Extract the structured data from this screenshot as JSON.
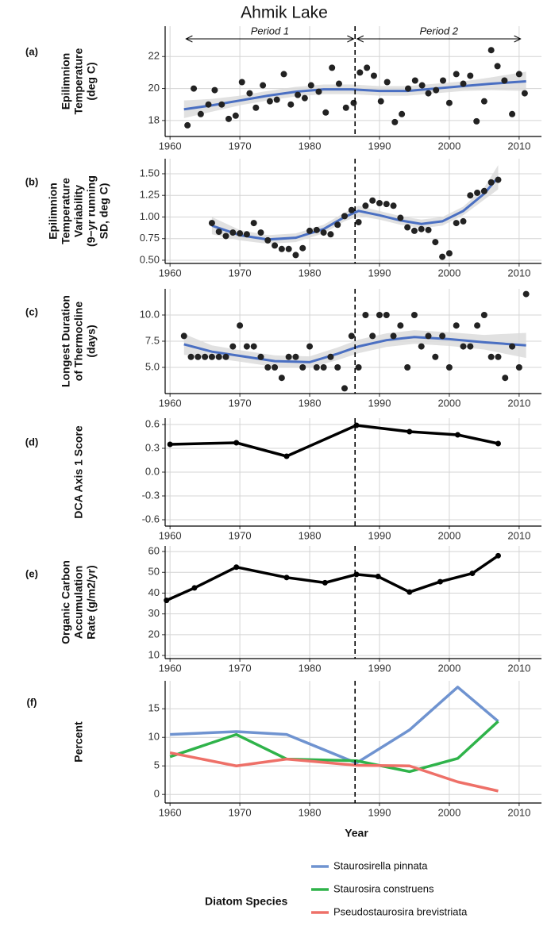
{
  "chart_data": [
    {
      "type": "scatter",
      "title": "Ahmik Lake",
      "panel_label": "(a)",
      "ylabel": [
        "Epilimnion",
        "Temperature",
        "(deg C)"
      ],
      "periods": [
        {
          "label": "Period 1",
          "start": 1962.3,
          "end": 1986.3
        },
        {
          "label": "Period 2",
          "start": 1986.8,
          "end": 2010.2
        }
      ],
      "xlim": [
        1959.3,
        2013.2
      ],
      "xticks": [
        1960,
        1970,
        1980,
        1990,
        2000,
        2010
      ],
      "ylim": [
        17.0,
        23.9
      ],
      "yticks": [
        18,
        20,
        22
      ],
      "grid": true,
      "vline": 1986.5,
      "point_color": "#222222",
      "smooth_color": "#4a6fc2",
      "band_color": "#d9d9d9",
      "points": {
        "x": [
          1962.5,
          1963.4,
          1964.4,
          1965.5,
          1966.4,
          1967.4,
          1968.4,
          1969.4,
          1970.3,
          1971.4,
          1972.3,
          1973.3,
          1974.3,
          1975.3,
          1976.3,
          1977.3,
          1978.3,
          1979.3,
          1980.2,
          1981.3,
          1982.3,
          1983.2,
          1984.2,
          1985.2,
          1986.3,
          1987.2,
          1988.2,
          1989.2,
          1990.2,
          1991.1,
          1992.2,
          1993.2,
          1994.1,
          1995.1,
          1996.1,
          1997.0,
          1998.1,
          1999.1,
          2000.0,
          2001.0,
          2002.0,
          2003.0,
          2003.9,
          2005.0,
          2006.0,
          2006.9,
          2007.9,
          2009.0,
          2010.0,
          2010.8
        ],
        "y": [
          17.7,
          20.0,
          18.4,
          19.0,
          19.9,
          19.0,
          18.1,
          18.3,
          20.4,
          19.7,
          18.8,
          20.2,
          19.2,
          19.3,
          20.9,
          19.0,
          19.6,
          19.4,
          20.2,
          19.8,
          18.5,
          21.3,
          20.3,
          18.8,
          19.1,
          21.0,
          21.3,
          20.8,
          19.2,
          20.4,
          17.9,
          18.4,
          20.0,
          20.5,
          20.2,
          19.7,
          19.9,
          20.5,
          19.1,
          20.9,
          20.3,
          20.8,
          17.95,
          19.2,
          22.4,
          21.4,
          20.5,
          18.4,
          20.9,
          19.7
        ]
      },
      "smooth": {
        "x": [
          1962,
          1966,
          1970,
          1974,
          1978,
          1982,
          1986,
          1990,
          1994,
          1998,
          2002,
          2006,
          2011
        ],
        "y": [
          18.7,
          18.95,
          19.25,
          19.55,
          19.8,
          19.95,
          19.95,
          19.85,
          19.85,
          20.0,
          20.15,
          20.3,
          20.45
        ],
        "lower": [
          18.15,
          18.55,
          18.95,
          19.25,
          19.5,
          19.65,
          19.65,
          19.55,
          19.55,
          19.7,
          19.85,
          19.9,
          19.85
        ],
        "upper": [
          19.25,
          19.35,
          19.55,
          19.85,
          20.1,
          20.25,
          20.25,
          20.15,
          20.15,
          20.3,
          20.45,
          20.7,
          21.05
        ]
      }
    },
    {
      "type": "scatter",
      "panel_label": "(b)",
      "ylabel": [
        "Epilimnion",
        "Temperature",
        "Variability",
        "(9−yr running",
        "SD, deg C)"
      ],
      "xlim": [
        1959.3,
        2013.2
      ],
      "xticks": [
        1960,
        1970,
        1980,
        1990,
        2000,
        2010
      ],
      "ylim": [
        0.463,
        1.674
      ],
      "yticks": [
        {
          "value": 0.5,
          "label": "0.50"
        },
        {
          "value": 0.75,
          "label": "0.75"
        },
        {
          "value": 1,
          "label": "1.00"
        },
        {
          "value": 1.25,
          "label": "1.25"
        },
        {
          "value": 1.5,
          "label": "1.50"
        }
      ],
      "grid": true,
      "vline": 1986.5,
      "point_color": "#222222",
      "smooth_color": "#4a6fc2",
      "band_color": "#d9d9d9",
      "points": {
        "x": [
          1966,
          1967,
          1968,
          1969,
          1970,
          1971,
          1972,
          1973,
          1974,
          1975,
          1976,
          1977,
          1978,
          1979,
          1980,
          1981,
          1982,
          1983,
          1984,
          1985,
          1986,
          1987,
          1988,
          1989,
          1990,
          1991,
          1992,
          1993,
          1994,
          1995,
          1996,
          1997,
          1998,
          1999,
          2000,
          2001,
          2002,
          2003,
          2004,
          2005,
          2006,
          2007
        ],
        "y": [
          0.93,
          0.83,
          0.78,
          0.82,
          0.81,
          0.8,
          0.93,
          0.82,
          0.73,
          0.67,
          0.63,
          0.63,
          0.56,
          0.64,
          0.84,
          0.85,
          0.82,
          0.8,
          0.91,
          1.01,
          1.08,
          0.94,
          1.13,
          1.19,
          1.16,
          1.15,
          1.13,
          0.99,
          0.88,
          0.84,
          0.86,
          0.85,
          0.71,
          0.54,
          0.58,
          0.93,
          0.95,
          1.25,
          1.28,
          1.3,
          1.4,
          1.43
        ]
      },
      "smooth": {
        "x": [
          1966,
          1970,
          1974,
          1978,
          1982,
          1985,
          1987,
          1990,
          1993,
          1996,
          1999,
          2002,
          2005,
          2007
        ],
        "y": [
          0.9,
          0.79,
          0.74,
          0.76,
          0.86,
          1.0,
          1.07,
          1.02,
          0.96,
          0.92,
          0.95,
          1.07,
          1.27,
          1.46
        ],
        "lower": [
          0.8,
          0.73,
          0.69,
          0.71,
          0.81,
          0.95,
          1.01,
          0.97,
          0.91,
          0.87,
          0.9,
          1.02,
          1.2,
          1.32
        ],
        "upper": [
          1.0,
          0.85,
          0.79,
          0.81,
          0.91,
          1.05,
          1.13,
          1.07,
          1.01,
          0.97,
          1.0,
          1.12,
          1.34,
          1.6
        ]
      }
    },
    {
      "type": "scatter",
      "panel_label": "(c)",
      "ylabel": [
        "Longest Duration",
        "of Thermocline",
        "(days)"
      ],
      "xlim": [
        1959.3,
        2013.2
      ],
      "xticks": [
        1960,
        1970,
        1980,
        1990,
        2000,
        2010
      ],
      "ylim": [
        2.5,
        12.5
      ],
      "yticks": [
        {
          "value": 5,
          "label": "5.0"
        },
        7.5,
        {
          "value": 10,
          "label": "10.0"
        }
      ],
      "grid": true,
      "vline": 1986.5,
      "point_color": "#222222",
      "smooth_color": "#4a6fc2",
      "band_color": "#d9d9d9",
      "points": {
        "x": [
          1962,
          1963,
          1964,
          1965,
          1966,
          1967,
          1968,
          1969,
          1970,
          1971,
          1972,
          1973,
          1974,
          1975,
          1976,
          1977,
          1978,
          1979,
          1980,
          1981,
          1982,
          1983,
          1984,
          1985,
          1986,
          1987,
          1988,
          1989,
          1990,
          1991,
          1992,
          1993,
          1994,
          1995,
          1996,
          1997,
          1998,
          1999,
          2000,
          2001,
          2002,
          2003,
          2004,
          2005,
          2006,
          2007,
          2008,
          2009,
          2010,
          2011
        ],
        "y": [
          8,
          6,
          6,
          6,
          6,
          6,
          6,
          7,
          9,
          7,
          7,
          6,
          5,
          5,
          4,
          6,
          6,
          5,
          7,
          5,
          5,
          6,
          5,
          3,
          8,
          5,
          10,
          8,
          10,
          10,
          8,
          9,
          5,
          10,
          7,
          8,
          6,
          8,
          5,
          9,
          7,
          7,
          9,
          10,
          6,
          6,
          4,
          7,
          5,
          12
        ]
      },
      "smooth": {
        "x": [
          1962,
          1966,
          1970,
          1975,
          1980,
          1984,
          1987,
          1991,
          1995,
          2000,
          2005,
          2011
        ],
        "y": [
          7.2,
          6.5,
          6.1,
          5.6,
          5.5,
          6.3,
          7.0,
          7.6,
          7.9,
          7.7,
          7.4,
          7.1
        ],
        "lower": [
          6.2,
          5.9,
          5.55,
          5.05,
          4.95,
          5.7,
          6.35,
          6.95,
          7.25,
          7.05,
          6.7,
          5.9
        ],
        "upper": [
          8.2,
          7.1,
          6.65,
          6.15,
          6.05,
          6.9,
          7.65,
          8.25,
          8.55,
          8.35,
          8.1,
          8.3
        ]
      }
    },
    {
      "type": "line",
      "panel_label": "(d)",
      "ylabel": [
        "DCA Axis 1 Score"
      ],
      "xlim": [
        1959.3,
        2013.2
      ],
      "xticks": [
        1960,
        1970,
        1980,
        1990,
        2000,
        2010
      ],
      "ylim": [
        -0.68,
        0.68
      ],
      "yticks": [
        -0.6,
        -0.3,
        {
          "value": 0,
          "label": "0.0"
        },
        0.3,
        0.6
      ],
      "grid": true,
      "vline": 1986.5,
      "markers": true,
      "x": [
        1960,
        1969.5,
        1976.7,
        1986.7,
        1994.3,
        2001.2,
        2007
      ],
      "series": [
        {
          "color": "#000000",
          "values": [
            0.35,
            0.37,
            0.2,
            0.59,
            0.51,
            0.47,
            0.36
          ]
        }
      ]
    },
    {
      "type": "line",
      "panel_label": "(e)",
      "ylabel": [
        "Organic Carbon",
        "Accumulation",
        "Rate (g/m2/yr)"
      ],
      "xlim": [
        1959.3,
        2013.2
      ],
      "xticks": [
        1960,
        1970,
        1980,
        1990,
        2000,
        2010
      ],
      "ylim": [
        8.5,
        62.7
      ],
      "yticks": [
        10,
        20,
        30,
        40,
        50,
        60
      ],
      "grid": true,
      "vline": 1986.5,
      "markers": true,
      "x": [
        1959.5,
        1963.5,
        1969.5,
        1976.7,
        1982.2,
        1986.7,
        1989.8,
        1994.3,
        1998.7,
        2003.3,
        2007
      ],
      "series": [
        {
          "color": "#000000",
          "values": [
            36.5,
            42.5,
            52.5,
            47.5,
            45,
            49,
            48,
            40.5,
            45.5,
            49.5,
            58
          ]
        }
      ]
    },
    {
      "type": "line",
      "panel_label": "(f)",
      "ylabel": [
        "Percent"
      ],
      "xlabel": "Year",
      "legend_title": "Diatom Species",
      "xlim": [
        1959.3,
        2013.2
      ],
      "xticks": [
        1960,
        1970,
        1980,
        1990,
        2000,
        2010
      ],
      "ylim": [
        -1.5,
        19.9
      ],
      "yticks": [
        0,
        5,
        10,
        15
      ],
      "grid": true,
      "vline": 1986.5,
      "markers": false,
      "x": [
        1960,
        1969.5,
        1976.7,
        1986.7,
        1994.3,
        2001.2,
        2007
      ],
      "series": [
        {
          "name": "Staurosirella pinnata",
          "color": "#6f93d0",
          "values": [
            10.5,
            11.0,
            10.5,
            5.5,
            11.3,
            18.8,
            12.8
          ]
        },
        {
          "name": "Staurosira construens",
          "color": "#2fb34a",
          "values": [
            6.6,
            10.5,
            6.2,
            5.9,
            4.0,
            6.3,
            12.8
          ]
        },
        {
          "name": "Pseudostaurosira brevistriata",
          "color": "#ee7068",
          "values": [
            7.3,
            5.0,
            6.2,
            5.1,
            5.0,
            2.2,
            0.6
          ]
        }
      ]
    }
  ]
}
